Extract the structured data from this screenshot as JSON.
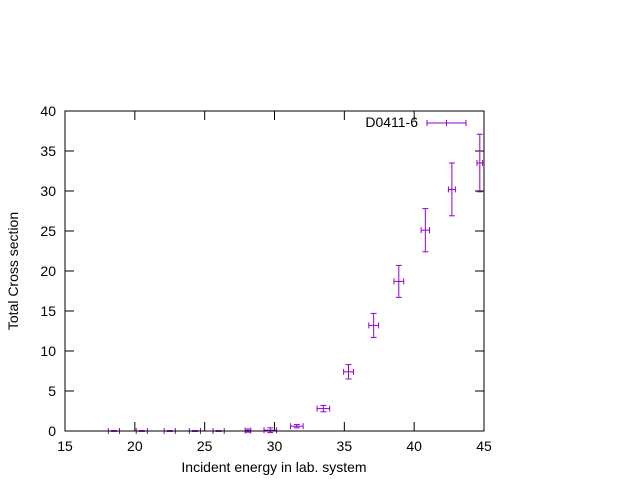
{
  "chart_data": {
    "type": "scatter",
    "xlabel": "Incident energy in lab. system",
    "ylabel": "Total Cross section",
    "xlim": [
      15,
      45
    ],
    "ylim": [
      0,
      40
    ],
    "x_ticks": [
      15,
      20,
      25,
      30,
      35,
      40,
      45
    ],
    "y_ticks": [
      0,
      5,
      10,
      15,
      20,
      25,
      30,
      35,
      40
    ],
    "grid": false,
    "legend_position": "top-right",
    "color": "#9400d3",
    "series": [
      {
        "name": "D0411-6",
        "points": [
          {
            "x": 18.5,
            "y": 0.0,
            "xerr": 0.4,
            "yerr": 0.05
          },
          {
            "x": 20.5,
            "y": 0.0,
            "xerr": 0.4,
            "yerr": 0.05
          },
          {
            "x": 22.5,
            "y": 0.0,
            "xerr": 0.4,
            "yerr": 0.05
          },
          {
            "x": 24.3,
            "y": 0.0,
            "xerr": 0.4,
            "yerr": 0.05
          },
          {
            "x": 26.0,
            "y": 0.0,
            "xerr": 0.4,
            "yerr": 0.05
          },
          {
            "x": 28.1,
            "y": 0.05,
            "xerr": 0.2,
            "yerr": 0.2
          },
          {
            "x": 29.7,
            "y": 0.1,
            "xerr": 0.45,
            "yerr": 0.3
          },
          {
            "x": 31.6,
            "y": 0.6,
            "xerr": 0.45,
            "yerr": 0.2
          },
          {
            "x": 33.5,
            "y": 2.8,
            "xerr": 0.45,
            "yerr": 0.4
          },
          {
            "x": 35.3,
            "y": 7.4,
            "xerr": 0.35,
            "yerr": 0.9
          },
          {
            "x": 37.1,
            "y": 13.2,
            "xerr": 0.35,
            "yerr": 1.5
          },
          {
            "x": 38.9,
            "y": 18.7,
            "xerr": 0.35,
            "yerr": 2.0
          },
          {
            "x": 40.8,
            "y": 25.1,
            "xerr": 0.3,
            "yerr": 2.7
          },
          {
            "x": 42.7,
            "y": 30.2,
            "xerr": 0.25,
            "yerr": 3.3
          },
          {
            "x": 44.7,
            "y": 33.5,
            "xerr": 0.2,
            "yerr": 3.6
          }
        ]
      }
    ]
  }
}
